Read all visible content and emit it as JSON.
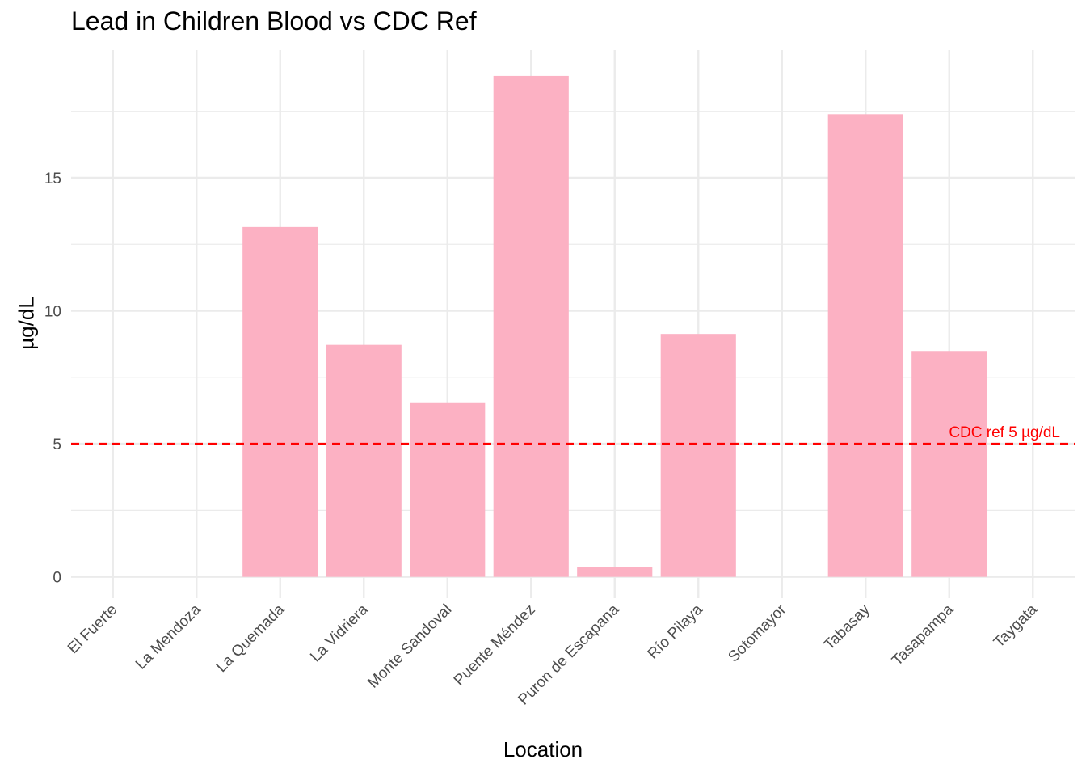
{
  "chart_data": {
    "type": "bar",
    "title": "Lead in Children Blood vs CDC Ref",
    "xlabel": "Location",
    "ylabel": "µg/dL",
    "categories": [
      "El Fuerte",
      "La Mendoza",
      "La Quemada",
      "La Vidriera",
      "Monte Sandoval",
      "Puente Méndez",
      "Puron de Escapana",
      "Río Pilaya",
      "Sotomayor",
      "Tabasay",
      "Tasapampa",
      "Taygata"
    ],
    "values": [
      0,
      0,
      13.15,
      8.72,
      6.56,
      18.83,
      0.37,
      9.13,
      0,
      17.39,
      8.49,
      0
    ],
    "ylim": [
      -0.8,
      19.8
    ],
    "yticks": [
      0,
      5,
      10,
      15
    ],
    "grid": true,
    "bar_color": "#FCB1C3",
    "reference_line": {
      "value": 5,
      "label": "CDC ref 5 µg/dL",
      "color": "#FF0000",
      "style": "dashed"
    }
  }
}
